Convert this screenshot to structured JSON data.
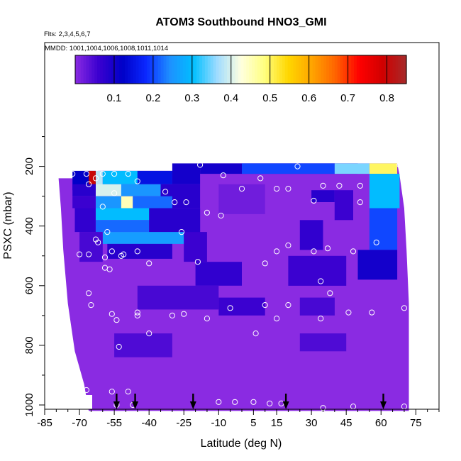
{
  "chart_data": {
    "type": "heatmap",
    "title": "ATOM3 Southbound HNO3_GMI",
    "flights_label": "Flts: 2,3,4,5,6,7",
    "dates_label": "MMDD: 1001,1004,1006,1008,1011,1014",
    "xlabel": "Latitude (deg N)",
    "ylabel": "PSXC (mbar)",
    "xlim": [
      -85,
      85
    ],
    "ylim": [
      1000,
      0
    ],
    "x_ticks": [
      -85,
      -70,
      -55,
      -40,
      -25,
      -10,
      5,
      15,
      30,
      45,
      60,
      75
    ],
    "y_ticks": [
      200,
      400,
      600,
      800,
      1000
    ],
    "colorbar": {
      "range": [
        0,
        0.85
      ],
      "ticks": [
        "0.1",
        "0.2",
        "0.3",
        "0.4",
        "0.5",
        "0.6",
        "0.7",
        "0.8"
      ],
      "colors": [
        "#8a2be2",
        "#3a00d0",
        "#0000c8",
        "#0a28ff",
        "#1e90ff",
        "#00bfff",
        "#9fdcff",
        "#ffffe0",
        "#ffff80",
        "#ffd700",
        "#ffa500",
        "#ff6400",
        "#ff0000",
        "#d00000",
        "#a52a2a"
      ]
    },
    "profile_arrows_lat": [
      -54,
      -46,
      -21,
      19,
      61
    ],
    "cells": [
      {
        "lat": [
          -73,
          -63
        ],
        "p": [
          215,
          280
        ],
        "v": 0.12
      },
      {
        "lat": [
          -66,
          -63
        ],
        "p": [
          215,
          260
        ],
        "v": 0.8
      },
      {
        "lat": [
          -63,
          -60
        ],
        "p": [
          215,
          280
        ],
        "v": 0.38
      },
      {
        "lat": [
          -60,
          -45
        ],
        "p": [
          215,
          260
        ],
        "v": 0.3
      },
      {
        "lat": [
          -45,
          -30
        ],
        "p": [
          215,
          260
        ],
        "v": 0.15
      },
      {
        "lat": [
          -30,
          -18
        ],
        "p": [
          190,
          260
        ],
        "v": 0.1
      },
      {
        "lat": [
          -18,
          50
        ],
        "p": [
          190,
          225
        ],
        "v": 0.1
      },
      {
        "lat": [
          0,
          40
        ],
        "p": [
          190,
          225
        ],
        "v": 0.2
      },
      {
        "lat": [
          40,
          55
        ],
        "p": [
          190,
          225
        ],
        "v": 0.35
      },
      {
        "lat": [
          55,
          67
        ],
        "p": [
          190,
          225
        ],
        "v": 0.5
      },
      {
        "lat": [
          -73,
          -63
        ],
        "p": [
          260,
          300
        ],
        "v": 0.08
      },
      {
        "lat": [
          -63,
          -52
        ],
        "p": [
          260,
          300
        ],
        "v": 0.4
      },
      {
        "lat": [
          -52,
          -35
        ],
        "p": [
          260,
          300
        ],
        "v": 0.25
      },
      {
        "lat": [
          -35,
          -18
        ],
        "p": [
          260,
          340
        ],
        "v": 0.08
      },
      {
        "lat": [
          30,
          40
        ],
        "p": [
          280,
          320
        ],
        "v": 0.08
      },
      {
        "lat": [
          55,
          68
        ],
        "p": [
          225,
          340
        ],
        "v": 0.3
      },
      {
        "lat": [
          -73,
          -63
        ],
        "p": [
          300,
          340
        ],
        "v": 0.06
      },
      {
        "lat": [
          -63,
          -52
        ],
        "p": [
          300,
          340
        ],
        "v": 0.25
      },
      {
        "lat": [
          -52,
          -47
        ],
        "p": [
          300,
          340
        ],
        "v": 0.45
      },
      {
        "lat": [
          -47,
          -30
        ],
        "p": [
          300,
          340
        ],
        "v": 0.22
      },
      {
        "lat": [
          40,
          48
        ],
        "p": [
          280,
          380
        ],
        "v": 0.06
      },
      {
        "lat": [
          -72,
          -63
        ],
        "p": [
          340,
          420
        ],
        "v": 0.07
      },
      {
        "lat": [
          -63,
          -35
        ],
        "p": [
          340,
          380
        ],
        "v": 0.3
      },
      {
        "lat": [
          -63,
          -40
        ],
        "p": [
          380,
          420
        ],
        "v": 0.22
      },
      {
        "lat": [
          -40,
          -18
        ],
        "p": [
          340,
          440
        ],
        "v": 0.08
      },
      {
        "lat": [
          -10,
          10
        ],
        "p": [
          260,
          360
        ],
        "v": 0.02
      },
      {
        "lat": [
          55,
          67
        ],
        "p": [
          340,
          480
        ],
        "v": 0.2
      },
      {
        "lat": [
          -60,
          -25
        ],
        "p": [
          420,
          460
        ],
        "v": 0.26
      },
      {
        "lat": [
          -70,
          -60
        ],
        "p": [
          420,
          520
        ],
        "v": 0.05
      },
      {
        "lat": [
          -25,
          -15
        ],
        "p": [
          420,
          520
        ],
        "v": 0.06
      },
      {
        "lat": [
          25,
          35
        ],
        "p": [
          380,
          480
        ],
        "v": 0.07
      },
      {
        "lat": [
          -58,
          -30
        ],
        "p": [
          460,
          510
        ],
        "v": 0.08
      },
      {
        "lat": [
          -20,
          0
        ],
        "p": [
          520,
          600
        ],
        "v": 0.07
      },
      {
        "lat": [
          20,
          45
        ],
        "p": [
          500,
          600
        ],
        "v": 0.06
      },
      {
        "lat": [
          50,
          67
        ],
        "p": [
          480,
          580
        ],
        "v": 0.1
      },
      {
        "lat": [
          -45,
          -10
        ],
        "p": [
          600,
          680
        ],
        "v": 0.05
      },
      {
        "lat": [
          -10,
          10
        ],
        "p": [
          640,
          700
        ],
        "v": 0.06
      },
      {
        "lat": [
          25,
          40
        ],
        "p": [
          640,
          700
        ],
        "v": 0.05
      },
      {
        "lat": [
          -55,
          -30
        ],
        "p": [
          760,
          840
        ],
        "v": 0.045
      },
      {
        "lat": [
          25,
          45
        ],
        "p": [
          760,
          820
        ],
        "v": 0.045
      }
    ],
    "observations": [
      {
        "lat": -78,
        "p": 225
      },
      {
        "lat": -73,
        "p": 225
      },
      {
        "lat": -67,
        "p": 225
      },
      {
        "lat": -60,
        "p": 225
      },
      {
        "lat": -55,
        "p": 225
      },
      {
        "lat": -49,
        "p": 225
      },
      {
        "lat": -66,
        "p": 260
      },
      {
        "lat": -63,
        "p": 240
      },
      {
        "lat": -45,
        "p": 250
      },
      {
        "lat": -33,
        "p": 285
      },
      {
        "lat": -55,
        "p": 290
      },
      {
        "lat": -29,
        "p": 320
      },
      {
        "lat": -24,
        "p": 320
      },
      {
        "lat": -60,
        "p": 335
      },
      {
        "lat": -18,
        "p": 195
      },
      {
        "lat": -8,
        "p": 230
      },
      {
        "lat": -15,
        "p": 355
      },
      {
        "lat": -9,
        "p": 365
      },
      {
        "lat": 8,
        "p": 240
      },
      {
        "lat": 24,
        "p": 200
      },
      {
        "lat": 0,
        "p": 275
      },
      {
        "lat": 15,
        "p": 275
      },
      {
        "lat": 20,
        "p": 275
      },
      {
        "lat": 35,
        "p": 265
      },
      {
        "lat": 42,
        "p": 265
      },
      {
        "lat": 51,
        "p": 265
      },
      {
        "lat": 31,
        "p": 315
      },
      {
        "lat": 51,
        "p": 320
      },
      {
        "lat": 68,
        "p": 195
      },
      {
        "lat": -58,
        "p": 420
      },
      {
        "lat": -63,
        "p": 445
      },
      {
        "lat": -62,
        "p": 455
      },
      {
        "lat": -26,
        "p": 420
      },
      {
        "lat": -66,
        "p": 495
      },
      {
        "lat": -70,
        "p": 495
      },
      {
        "lat": -56,
        "p": 485
      },
      {
        "lat": -51,
        "p": 495
      },
      {
        "lat": -52,
        "p": 500
      },
      {
        "lat": -45,
        "p": 485
      },
      {
        "lat": -59,
        "p": 505
      },
      {
        "lat": -19,
        "p": 520
      },
      {
        "lat": 10,
        "p": 525
      },
      {
        "lat": 20,
        "p": 465
      },
      {
        "lat": 15,
        "p": 485
      },
      {
        "lat": 31,
        "p": 485
      },
      {
        "lat": 37,
        "p": 475
      },
      {
        "lat": 48,
        "p": 485
      },
      {
        "lat": 58,
        "p": 455
      },
      {
        "lat": -59,
        "p": 540
      },
      {
        "lat": -57,
        "p": 545
      },
      {
        "lat": -40,
        "p": 525
      },
      {
        "lat": 34,
        "p": 585
      },
      {
        "lat": 38,
        "p": 625
      },
      {
        "lat": -66,
        "p": 625
      },
      {
        "lat": -65,
        "p": 665
      },
      {
        "lat": -56,
        "p": 695
      },
      {
        "lat": -54,
        "p": 715
      },
      {
        "lat": -45,
        "p": 690
      },
      {
        "lat": -45,
        "p": 700
      },
      {
        "lat": -30,
        "p": 700
      },
      {
        "lat": -25,
        "p": 695
      },
      {
        "lat": -15,
        "p": 710
      },
      {
        "lat": -5,
        "p": 675
      },
      {
        "lat": 10,
        "p": 665
      },
      {
        "lat": 15,
        "p": 710
      },
      {
        "lat": 20,
        "p": 665
      },
      {
        "lat": 34,
        "p": 710
      },
      {
        "lat": 46,
        "p": 690
      },
      {
        "lat": 56,
        "p": 690
      },
      {
        "lat": 70,
        "p": 675
      },
      {
        "lat": -40,
        "p": 760
      },
      {
        "lat": 6,
        "p": 760
      },
      {
        "lat": -53,
        "p": 805
      },
      {
        "lat": -69,
        "p": 950
      },
      {
        "lat": -67,
        "p": 950
      },
      {
        "lat": -56,
        "p": 955
      },
      {
        "lat": -49,
        "p": 955
      },
      {
        "lat": -54,
        "p": 1000
      },
      {
        "lat": -47,
        "p": 1000
      },
      {
        "lat": -10,
        "p": 990
      },
      {
        "lat": -3,
        "p": 990
      },
      {
        "lat": 5,
        "p": 990
      },
      {
        "lat": 12,
        "p": 995
      },
      {
        "lat": 17,
        "p": 995
      },
      {
        "lat": 35,
        "p": 1010
      },
      {
        "lat": 48,
        "p": 1005
      },
      {
        "lat": 70,
        "p": 1005
      }
    ]
  }
}
